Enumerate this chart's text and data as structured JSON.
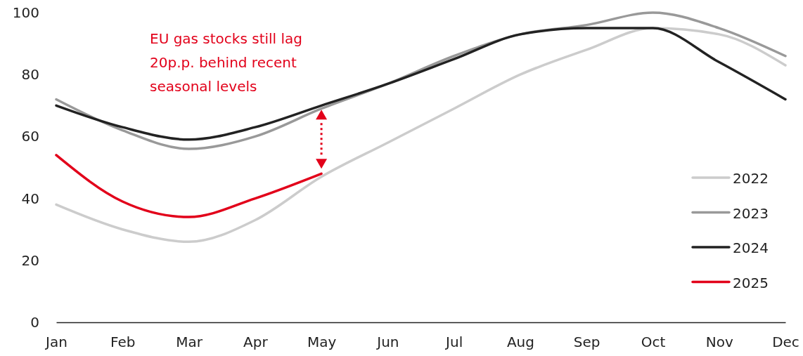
{
  "chart_data": {
    "type": "line",
    "categories": [
      "Jan",
      "Feb",
      "Mar",
      "Apr",
      "May",
      "Jun",
      "Jul",
      "Aug",
      "Sep",
      "Oct",
      "Nov",
      "Dec"
    ],
    "series": [
      {
        "name": "2022",
        "color": "#cccccc",
        "values": [
          38,
          30,
          26,
          33,
          47,
          58,
          69,
          80,
          88,
          95,
          93,
          83
        ]
      },
      {
        "name": "2023",
        "color": "#999999",
        "values": [
          72,
          62,
          56,
          60,
          69,
          77,
          86,
          93,
          96,
          100,
          95,
          86
        ]
      },
      {
        "name": "2024",
        "color": "#222222",
        "values": [
          70,
          63,
          59,
          63,
          70,
          77,
          85,
          93,
          95,
          95,
          84,
          72
        ]
      },
      {
        "name": "2025",
        "color": "#e2001a",
        "values": [
          54,
          39,
          34,
          40,
          48,
          null,
          null,
          null,
          null,
          null,
          null,
          null
        ]
      }
    ],
    "ylim": [
      0,
      100
    ],
    "yticks": [
      0,
      20,
      40,
      60,
      80,
      100
    ],
    "annotations": [
      "EU gas stocks still lag 20p.p. behind recent seasonal levels"
    ],
    "legend": "bottom right",
    "grid": false,
    "marker": "none",
    "line_style": "solid"
  }
}
